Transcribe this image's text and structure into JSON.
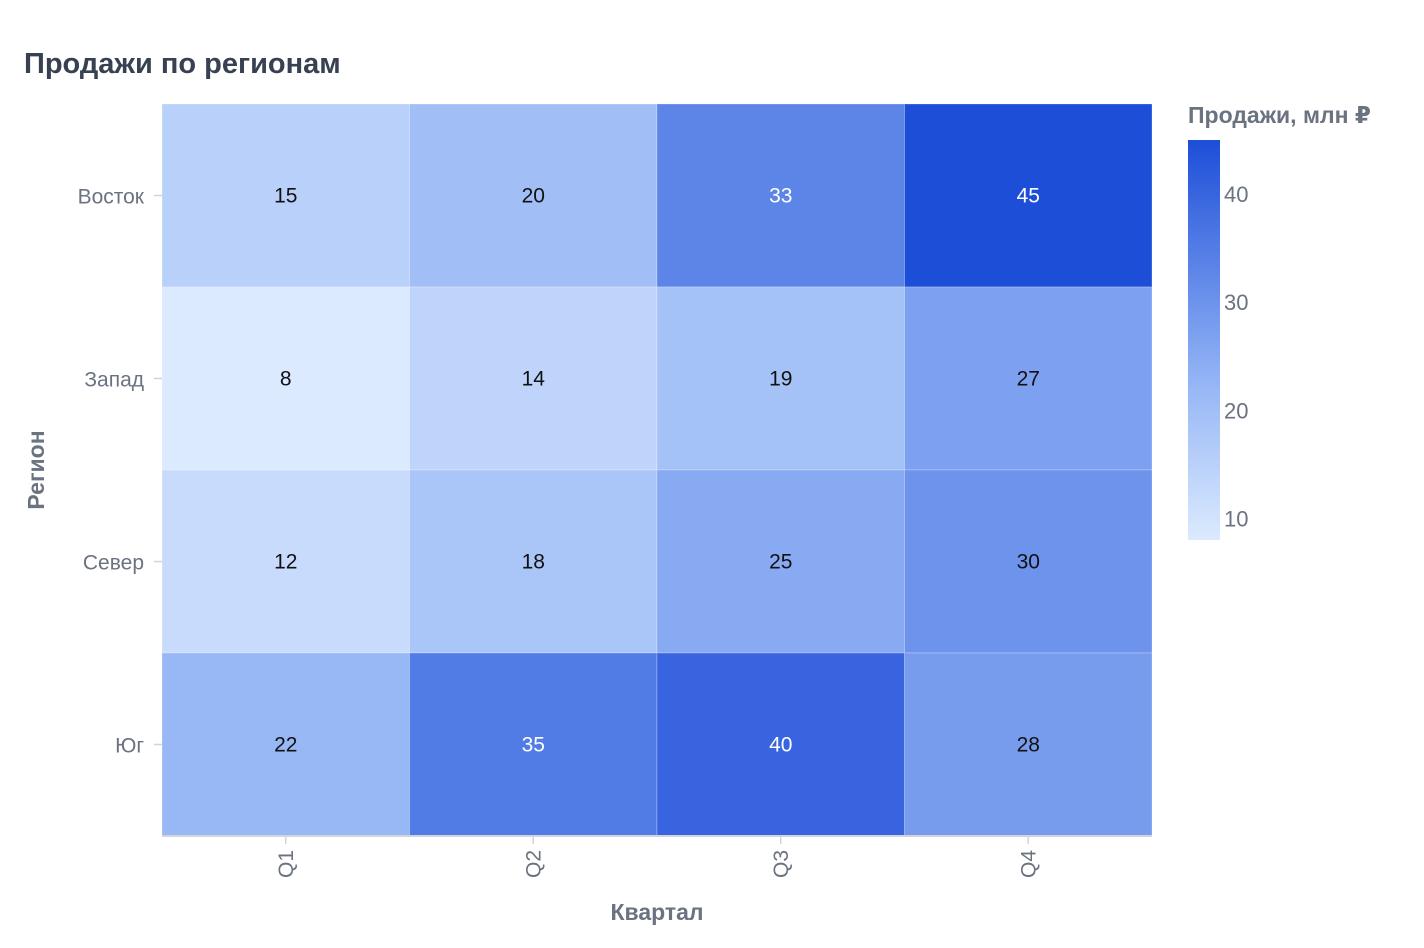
{
  "chart_data": {
    "type": "heatmap",
    "title": "Продажи по регионам",
    "xlabel": "Квартал",
    "ylabel": "Регион",
    "x_categories": [
      "Q1",
      "Q2",
      "Q3",
      "Q4"
    ],
    "y_categories": [
      "Восток",
      "Запад",
      "Север",
      "Юг"
    ],
    "values": [
      [
        15,
        20,
        33,
        45
      ],
      [
        8,
        14,
        19,
        27
      ],
      [
        12,
        18,
        25,
        30
      ],
      [
        22,
        35,
        40,
        28
      ]
    ],
    "colorbar": {
      "title": "Продажи, млн ₽",
      "min": 8,
      "max": 45,
      "ticks": [
        10,
        20,
        30,
        40
      ],
      "color_low": "#dbeafe",
      "color_mid": "#93b4f5",
      "color_high": "#1d4ed8"
    },
    "grid": false,
    "legend_position": "right"
  }
}
